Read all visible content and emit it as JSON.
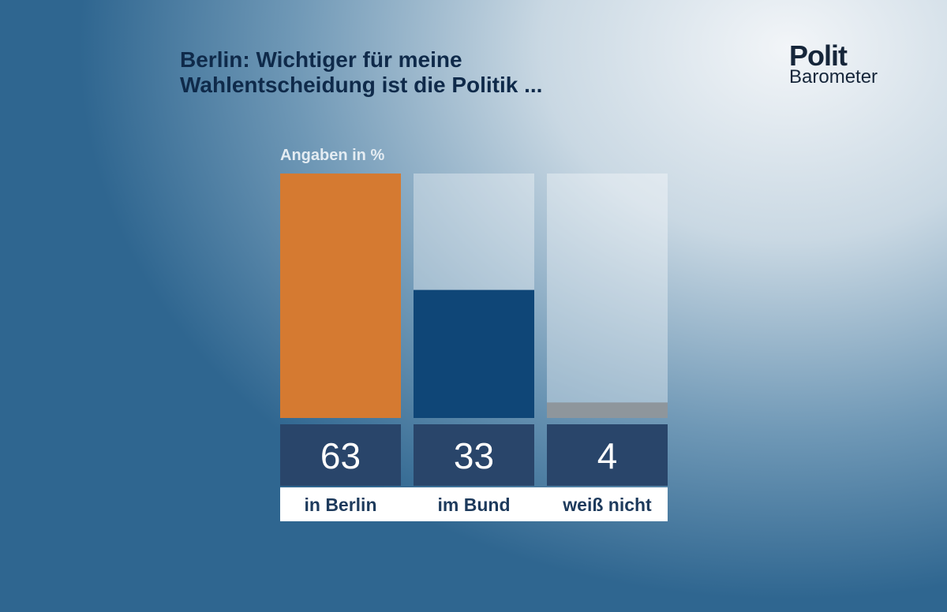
{
  "logo": {
    "top": "Polit",
    "bottom": "Barometer"
  },
  "chart_data": {
    "type": "bar",
    "title": "Berlin: Wichtiger für meine Wahlentscheidung ist die Politik ...",
    "subtitle": "Angaben in %",
    "categories": [
      "in Berlin",
      "im Bund",
      "weiß nicht"
    ],
    "values": [
      63,
      33,
      4
    ],
    "colors": [
      "#d57a31",
      "#0f4677",
      "#8e969c"
    ]
  }
}
